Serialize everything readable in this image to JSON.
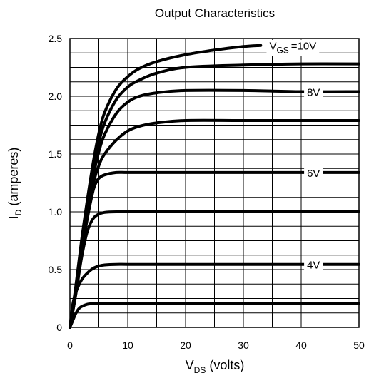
{
  "chart_data": {
    "type": "line",
    "title": "Output Characteristics",
    "xlabel": {
      "main": "V",
      "sub": "DS",
      "rest": " (volts)"
    },
    "ylabel": {
      "main": "I",
      "sub": "D",
      "rest": " (amperes)"
    },
    "xlim": [
      0,
      50
    ],
    "ylim": [
      0,
      2.5
    ],
    "x_ticks": [
      0,
      10,
      20,
      30,
      40,
      50
    ],
    "x_tick_labels": [
      "0",
      "10",
      "20",
      "30",
      "40",
      "50"
    ],
    "y_ticks": [
      0,
      0.5,
      1.0,
      1.5,
      2.0,
      2.5
    ],
    "y_tick_labels": [
      "0",
      "0.5",
      "1.0",
      "1.5",
      "2.0",
      "2.5"
    ],
    "grid": true,
    "series": [
      {
        "name": "V_GS = 10V",
        "x": [
          0,
          1,
          2,
          3,
          4,
          5,
          6,
          8,
          10,
          12,
          15,
          20,
          25,
          30,
          33
        ],
        "y": [
          0,
          0.35,
          0.75,
          1.1,
          1.42,
          1.68,
          1.86,
          2.06,
          2.17,
          2.24,
          2.3,
          2.36,
          2.4,
          2.43,
          2.44
        ]
      },
      {
        "name": "",
        "x": [
          0,
          1,
          2,
          3,
          4,
          5,
          6,
          8,
          10,
          12,
          15,
          20,
          30,
          40,
          50
        ],
        "y": [
          0,
          0.33,
          0.72,
          1.05,
          1.35,
          1.6,
          1.77,
          1.97,
          2.08,
          2.14,
          2.2,
          2.25,
          2.27,
          2.28,
          2.28
        ]
      },
      {
        "name": "8V",
        "x": [
          0,
          1,
          2,
          3,
          4,
          5,
          6,
          8,
          10,
          12,
          15,
          20,
          30,
          40,
          50
        ],
        "y": [
          0,
          0.32,
          0.7,
          1.02,
          1.3,
          1.52,
          1.67,
          1.85,
          1.95,
          2.0,
          2.03,
          2.05,
          2.05,
          2.04,
          2.04
        ]
      },
      {
        "name": "",
        "x": [
          0,
          1,
          2,
          3,
          4,
          5,
          6,
          8,
          10,
          12,
          15,
          20,
          30,
          40,
          50
        ],
        "y": [
          0,
          0.3,
          0.66,
          0.98,
          1.24,
          1.4,
          1.5,
          1.62,
          1.7,
          1.74,
          1.77,
          1.79,
          1.79,
          1.79,
          1.79
        ]
      },
      {
        "name": "6V",
        "x": [
          0,
          1,
          2,
          3,
          4,
          4.5,
          5,
          6,
          8,
          10,
          15,
          20,
          30,
          40,
          50
        ],
        "y": [
          0,
          0.29,
          0.64,
          0.94,
          1.18,
          1.25,
          1.29,
          1.32,
          1.34,
          1.34,
          1.34,
          1.34,
          1.34,
          1.34,
          1.34
        ]
      },
      {
        "name": "",
        "x": [
          0,
          1,
          2,
          3,
          4,
          5,
          6,
          8,
          10,
          12,
          15,
          20,
          30,
          40,
          50
        ],
        "y": [
          0,
          0.28,
          0.6,
          0.83,
          0.94,
          0.98,
          0.995,
          1.0,
          1.0,
          1.0,
          1.0,
          1.0,
          1.0,
          1.0,
          1.0
        ]
      },
      {
        "name": "4V",
        "x": [
          0,
          0.5,
          1,
          2,
          3,
          4,
          5,
          6,
          8,
          10,
          15,
          20,
          30,
          40,
          50
        ],
        "y": [
          0,
          0.2,
          0.3,
          0.41,
          0.47,
          0.51,
          0.53,
          0.54,
          0.545,
          0.545,
          0.545,
          0.545,
          0.545,
          0.545,
          0.545
        ]
      },
      {
        "name": "",
        "x": [
          0,
          0.5,
          1,
          1.5,
          2,
          3,
          4,
          5,
          6,
          10,
          20,
          30,
          40,
          50
        ],
        "y": [
          0,
          0.06,
          0.12,
          0.16,
          0.18,
          0.2,
          0.205,
          0.205,
          0.205,
          0.205,
          0.205,
          0.205,
          0.205,
          0.205
        ]
      }
    ],
    "curve_labels": [
      {
        "text": "=10V",
        "main": "V",
        "sub": "GS",
        "x_data": 34.5,
        "y_data": 2.44,
        "series": 0
      },
      {
        "text": "8V",
        "x_data": 41,
        "y_data": 2.04,
        "series": 2
      },
      {
        "text": "6V",
        "x_data": 41,
        "y_data": 1.34,
        "series": 4
      },
      {
        "text": "4V",
        "x_data": 41,
        "y_data": 0.545,
        "series": 6
      }
    ]
  }
}
